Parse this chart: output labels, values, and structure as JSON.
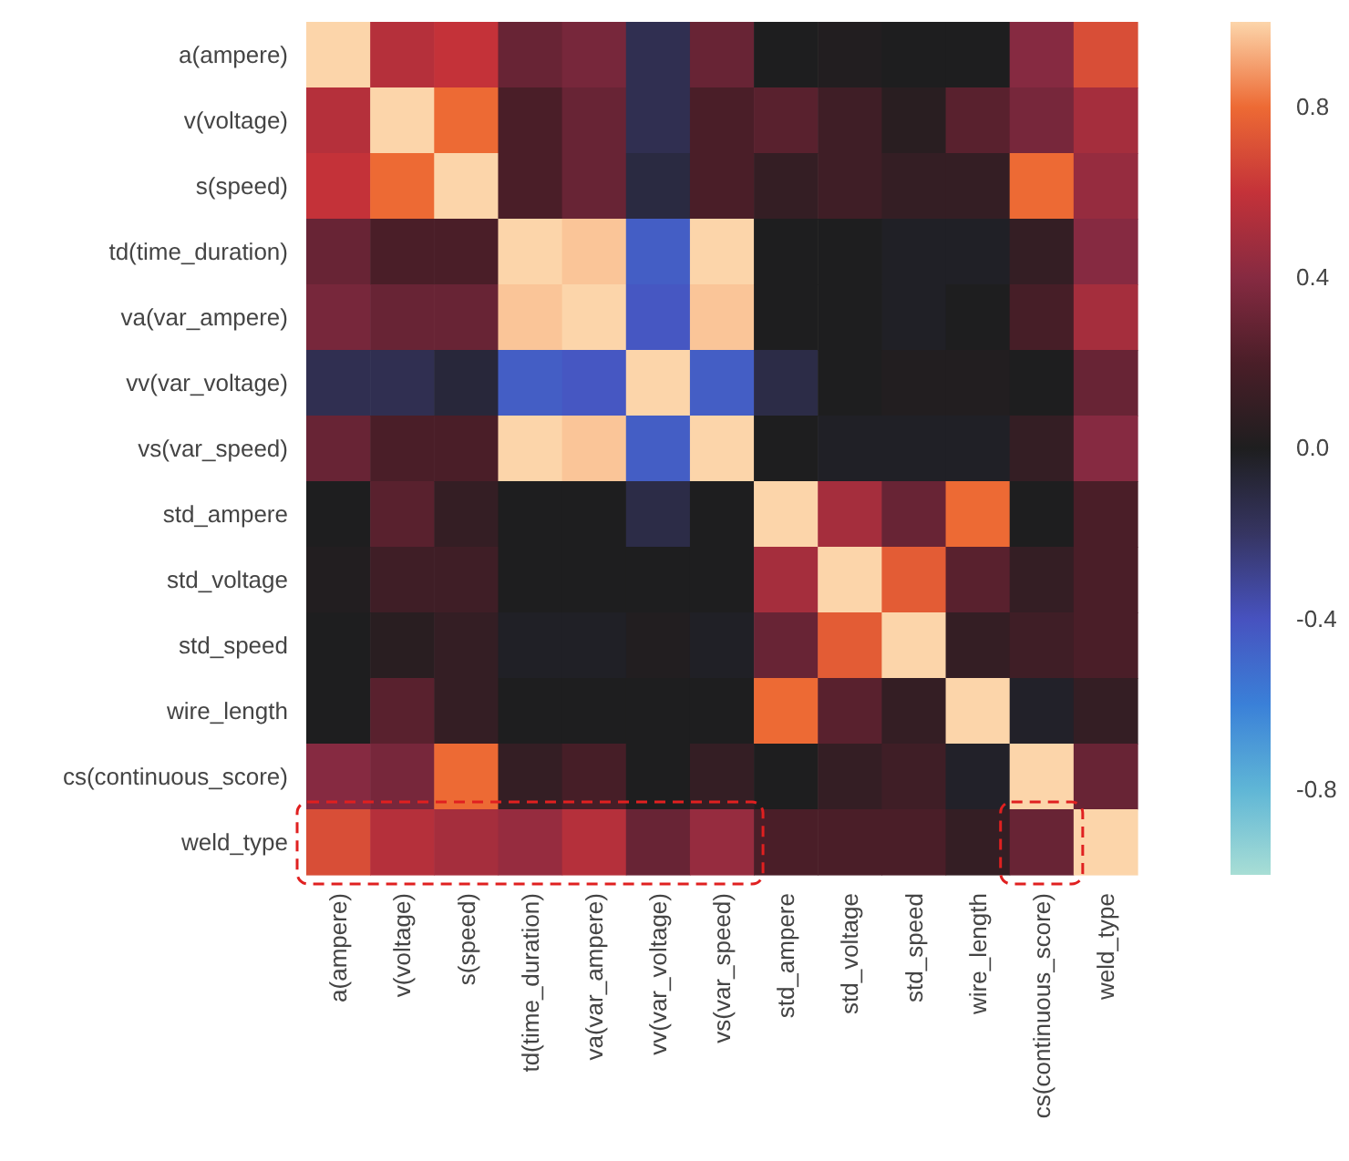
{
  "chart_data": {
    "type": "heatmap",
    "categories": [
      "a(ampere)",
      "v(voltage)",
      "s(speed)",
      "td(time_duration)",
      "va(var_ampere)",
      "vv(var_voltage)",
      "vs(var_speed)",
      "std_ampere",
      "std_voltage",
      "std_speed",
      "wire_length",
      "cs(continuous_score)",
      "weld_type"
    ],
    "y_categories": [
      "a(ampere)",
      "v(voltage)",
      "s(speed)",
      "td(time_duration)",
      "va(var_ampere)",
      "vv(var_voltage)",
      "vs(var_speed)",
      "std_ampere",
      "std_voltage",
      "std_speed",
      "wire_length",
      "cs(continuous_score)",
      "weld_type"
    ],
    "cells": [
      [
        1,
        0.55,
        0.6,
        0.3,
        0.35,
        -0.15,
        0.3,
        0.0,
        0.02,
        0.0,
        0.0,
        0.4,
        0.7
      ],
      [
        0.55,
        1,
        0.8,
        0.2,
        0.3,
        -0.15,
        0.2,
        0.25,
        0.15,
        0.05,
        0.25,
        0.35,
        0.5
      ],
      [
        0.6,
        0.8,
        1,
        0.2,
        0.3,
        -0.1,
        0.2,
        0.1,
        0.15,
        0.1,
        0.1,
        0.8,
        0.45
      ],
      [
        0.3,
        0.2,
        0.2,
        1,
        0.97,
        -0.45,
        1,
        0.0,
        0.0,
        -0.02,
        -0.02,
        0.1,
        0.4
      ],
      [
        0.35,
        0.3,
        0.3,
        0.97,
        1,
        -0.42,
        0.97,
        0.0,
        0.0,
        -0.02,
        0.0,
        0.18,
        0.5
      ],
      [
        -0.15,
        -0.15,
        -0.08,
        -0.45,
        -0.42,
        1,
        -0.45,
        -0.12,
        0.0,
        0.02,
        0.02,
        0.0,
        0.3
      ],
      [
        0.3,
        0.2,
        0.2,
        1,
        0.97,
        -0.45,
        1,
        0.0,
        -0.02,
        -0.02,
        -0.02,
        0.1,
        0.4
      ],
      [
        0.0,
        0.25,
        0.1,
        0.0,
        0.0,
        -0.12,
        0.0,
        1,
        0.5,
        0.3,
        0.8,
        0.0,
        0.2
      ],
      [
        0.02,
        0.15,
        0.15,
        0.0,
        0.0,
        0.0,
        0.0,
        0.5,
        1,
        0.75,
        0.25,
        0.1,
        0.2
      ],
      [
        0.0,
        0.05,
        0.1,
        -0.02,
        -0.02,
        0.02,
        -0.02,
        0.3,
        0.75,
        1,
        0.1,
        0.15,
        0.2
      ],
      [
        0.0,
        0.25,
        0.1,
        0.0,
        0.0,
        0.0,
        0.0,
        0.8,
        0.25,
        0.1,
        1,
        -0.03,
        0.1
      ],
      [
        0.4,
        0.35,
        0.8,
        0.1,
        0.18,
        0.0,
        0.1,
        0.0,
        0.1,
        0.15,
        -0.03,
        1,
        0.3
      ],
      [
        0.7,
        0.55,
        0.5,
        0.45,
        0.55,
        0.3,
        0.45,
        0.2,
        0.2,
        0.2,
        0.1,
        0.3,
        1
      ]
    ],
    "clim": [
      -1,
      1
    ],
    "cticks": [
      -0.8,
      -0.4,
      {
        "value": 0,
        "label": "0.0"
      },
      0.4,
      0.8
    ]
  }
}
